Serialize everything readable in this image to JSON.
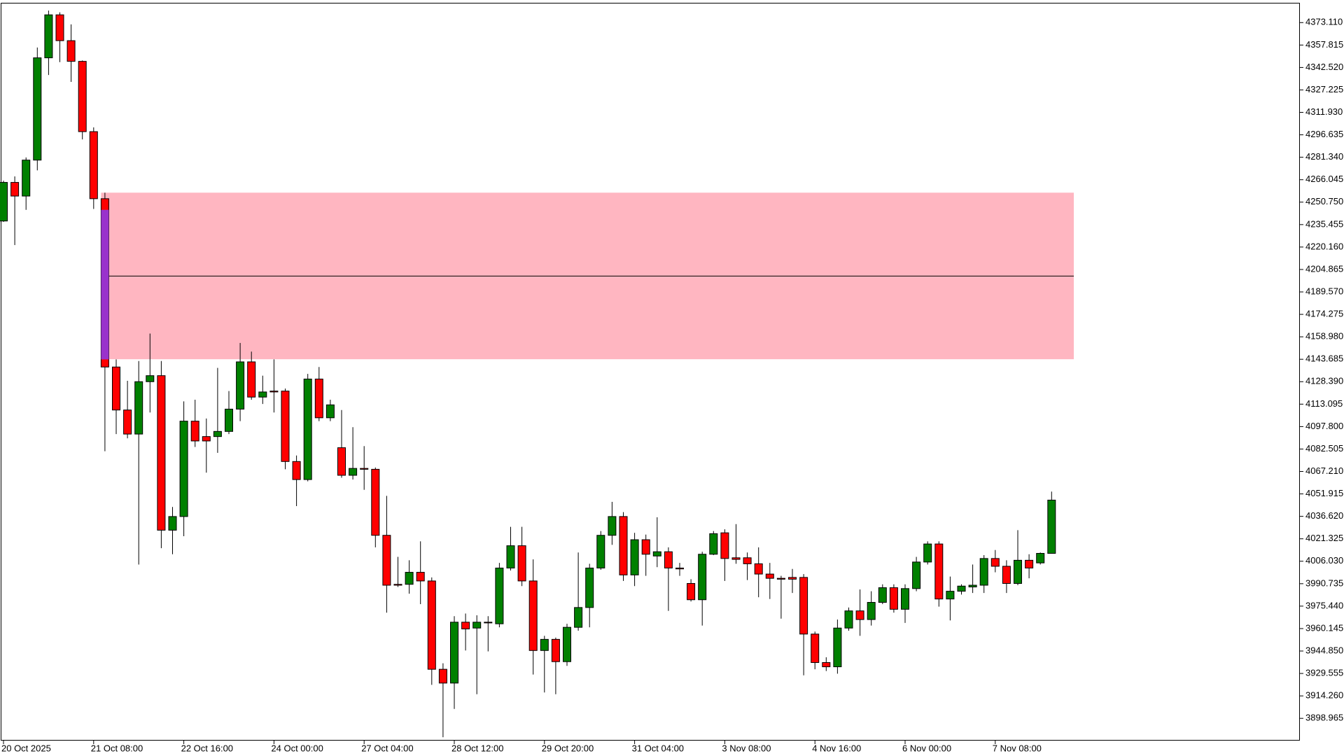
{
  "chart_data": {
    "type": "candlestick",
    "categories": [
      "20 Oct 2025",
      null,
      null,
      null,
      null,
      null,
      null,
      null,
      "21 Oct 08:00",
      null,
      null,
      null,
      null,
      null,
      null,
      null,
      "22 Oct 16:00",
      null,
      null,
      null,
      null,
      null,
      null,
      null,
      "24 Oct 00:00",
      null,
      null,
      null,
      null,
      null,
      null,
      null,
      "27 Oct 04:00",
      null,
      null,
      null,
      null,
      null,
      null,
      null,
      "28 Oct 12:00",
      null,
      null,
      null,
      null,
      null,
      null,
      null,
      "29 Oct 20:00",
      null,
      null,
      null,
      null,
      null,
      null,
      null,
      "31 Oct 04:00",
      null,
      null,
      null,
      null,
      null,
      null,
      null,
      "3 Nov 08:00",
      null,
      null,
      null,
      null,
      null,
      null,
      null,
      "4 Nov 16:00",
      null,
      null,
      null,
      null,
      null,
      null,
      null,
      "6 Nov 00:00",
      null,
      null,
      null,
      null,
      null,
      null,
      null,
      "7 Nov 08:00",
      null,
      null,
      null,
      null,
      null
    ],
    "open": [
      4237.9,
      4264.2,
      4254.9,
      4279.4,
      4349.1,
      4378.4,
      4360.8,
      4346.7,
      4298.8,
      4253.1,
      4138.4,
      4109.1,
      4092.7,
      4128.4,
      4132.5,
      4027.2,
      4036.5,
      4101.5,
      4091.0,
      4091.0,
      4094.5,
      4109.7,
      4141.9,
      4117.9,
      4122.0,
      4122.0,
      4074.0,
      4061.7,
      4130.2,
      4103.8,
      4083.4,
      4064.6,
      4069.3,
      4068.7,
      4023.7,
      3990.3,
      3990.3,
      3998.5,
      3992.6,
      3932.4,
      3923.0,
      3964.5,
      3960.5,
      3964.5,
      3963.4,
      4001.4,
      4016.6,
      3992.6,
      3945.2,
      3952.8,
      3937.6,
      3961.0,
      3974.5,
      4001.4,
      4023.7,
      4036.5,
      3996.7,
      4020.7,
      4009.6,
      4012.5,
      4001.4,
      3990.9,
      3979.8,
      4010.8,
      4025.4,
      4008.4,
      4008.4,
      4004.3,
      3997.3,
      3994.4,
      3995.0,
      3995.0,
      3956.4,
      3937.0,
      3934.1,
      3960.5,
      3972.2,
      3966.3,
      3978.0,
      3988.0,
      3973.3,
      3987.4,
      4005.5,
      4017.8,
      3980.3,
      3985.6,
      3988.5,
      3989.7,
      4007.9,
      4002.6,
      3990.9,
      4006.7,
      4004.9,
      4011.4
    ],
    "high": [
      4265.4,
      4268.3,
      4281.2,
      4356.1,
      4381.3,
      4380.1,
      4371.9,
      4347.3,
      4301.7,
      4257.2,
      4143.6,
      4129.0,
      4142.5,
      4161.2,
      4142.5,
      4043.0,
      4115.0,
      4116.1,
      4103.3,
      4137.8,
      4122.0,
      4154.8,
      4148.9,
      4132.5,
      4143.6,
      4123.7,
      4078.1,
      4133.7,
      4138.4,
      4116.1,
      4109.1,
      4097.4,
      4084.5,
      4069.9,
      4050.6,
      4009.0,
      4006.7,
      4019.6,
      3995.0,
      3936.5,
      3968.6,
      3970.4,
      3969.2,
      3968.6,
      4004.9,
      4029.5,
      4029.5,
      4007.3,
      3955.2,
      3954.0,
      3963.4,
      4012.0,
      4004.3,
      4026.6,
      4046.5,
      4039.5,
      4025.4,
      4024.2,
      4036.0,
      4015.5,
      4004.9,
      3993.8,
      4012.5,
      4026.6,
      4027.8,
      4031.3,
      4012.0,
      4015.5,
      4004.9,
      3996.1,
      4000.8,
      3997.3,
      3958.1,
      3940.6,
      3966.3,
      3974.5,
      3986.8,
      3985.6,
      3990.3,
      3990.3,
      3990.3,
      4009.0,
      4019.6,
      4019.6,
      3995.6,
      3990.3,
      4003.8,
      4010.2,
      4013.7,
      4006.7,
      4027.2,
      4010.8,
      4012.0,
      4053.5
    ],
    "low": [
      4237.3,
      4221.5,
      4245.5,
      4272.4,
      4337.4,
      4346.2,
      4332.7,
      4293.5,
      4246.1,
      4081.0,
      4092.7,
      4089.8,
      4003.8,
      4107.4,
      4014.9,
      4010.8,
      4023.1,
      4083.9,
      4066.4,
      4079.9,
      4092.7,
      4101.5,
      4116.1,
      4113.2,
      4107.4,
      4068.7,
      4043.6,
      4060.5,
      4101.5,
      4101.5,
      4062.9,
      4061.7,
      4054.7,
      4015.5,
      3971.0,
      3988.5,
      3983.9,
      3976.8,
      3921.8,
      3886.1,
      3905.4,
      3945.2,
      3915.4,
      3944.6,
      3961.0,
      3999.7,
      3989.1,
      3928.8,
      3916.6,
      3915.4,
      3934.7,
      3958.7,
      3961.0,
      4000.2,
      4017.2,
      3992.6,
      3989.1,
      3996.1,
      4002.0,
      3972.2,
      3996.1,
      3978.6,
      3962.2,
      4010.2,
      3992.6,
      4004.3,
      3993.2,
      3981.5,
      3980.3,
      3966.9,
      3984.4,
      3928.3,
      3932.4,
      3931.2,
      3929.4,
      3958.7,
      3955.2,
      3962.2,
      3976.8,
      3971.0,
      3964.0,
      3985.6,
      4003.8,
      3975.1,
      3965.7,
      3983.3,
      3984.4,
      3984.4,
      3998.5,
      3984.4,
      3989.7,
      3994.4,
      4003.8,
      4011.4
    ],
    "close": [
      4264.2,
      4254.9,
      4279.4,
      4349.1,
      4378.4,
      4360.8,
      4346.7,
      4298.8,
      4253.1,
      4138.4,
      4109.1,
      4092.7,
      4128.4,
      4132.5,
      4027.2,
      4036.5,
      4101.5,
      4088.0,
      4088.0,
      4094.5,
      4109.7,
      4141.9,
      4117.9,
      4121.4,
      4121.4,
      4074.0,
      4061.7,
      4130.2,
      4103.8,
      4112.6,
      4064.6,
      4069.3,
      4068.7,
      4023.7,
      3989.7,
      3989.7,
      3998.5,
      3992.6,
      3932.4,
      3923.0,
      3964.5,
      3959.9,
      3964.5,
      3964.0,
      4001.4,
      4016.6,
      3992.6,
      3945.2,
      3952.8,
      3937.6,
      3961.0,
      3974.5,
      4001.4,
      4023.7,
      4036.5,
      3996.7,
      4020.7,
      4010.8,
      4012.5,
      4001.4,
      4000.8,
      3979.8,
      4010.8,
      4024.8,
      4007.9,
      4007.3,
      4004.3,
      3997.3,
      3994.4,
      3993.8,
      3993.8,
      3956.4,
      3937.0,
      3934.1,
      3960.5,
      3972.2,
      3966.3,
      3978.0,
      3988.0,
      3973.3,
      3987.4,
      4005.5,
      4017.8,
      3980.3,
      3985.6,
      3989.1,
      3989.7,
      4007.9,
      4002.6,
      3990.9,
      4006.7,
      4001.4,
      4011.4,
      4047.7
    ],
    "up_color": "#008000",
    "down_color": "#ff0000",
    "zone": {
      "high": 4257.2,
      "low": 4143.7,
      "level": 4200.4,
      "color": "#ffb6c1"
    },
    "highlight": {
      "high": 4245.5,
      "low": 4143.6,
      "color": "#9932cc"
    },
    "ylim": [
      3883.8,
      4386.6
    ],
    "yticks": [
      {
        "value": 4373.11,
        "label": "4373.110"
      },
      4357.815,
      {
        "value": 4342.52,
        "label": "4342.520"
      },
      4327.225,
      {
        "value": 4311.93,
        "label": "4311.930"
      },
      4296.635,
      {
        "value": 4281.34,
        "label": "4281.340"
      },
      4266.045,
      {
        "value": 4250.75,
        "label": "4250.750"
      },
      4235.455,
      {
        "value": 4220.16,
        "label": "4220.160"
      },
      4204.865,
      {
        "value": 4189.57,
        "label": "4189.570"
      },
      4174.275,
      {
        "value": 4158.98,
        "label": "4158.980"
      },
      4143.685,
      {
        "value": 4128.39,
        "label": "4128.390"
      },
      4113.095,
      {
        "value": 4097.8,
        "label": "4097.800"
      },
      4082.505,
      {
        "value": 4067.21,
        "label": "4067.210"
      },
      4051.915,
      {
        "value": 4036.62,
        "label": "4036.620"
      },
      4021.325,
      {
        "value": 4006.03,
        "label": "4006.030"
      },
      3990.735,
      {
        "value": 3975.44,
        "label": "3975.440"
      },
      3960.145,
      {
        "value": 3944.85,
        "label": "3944.850"
      },
      3929.555,
      {
        "value": 3914.26,
        "label": "3914.260"
      },
      3898.965
    ]
  }
}
